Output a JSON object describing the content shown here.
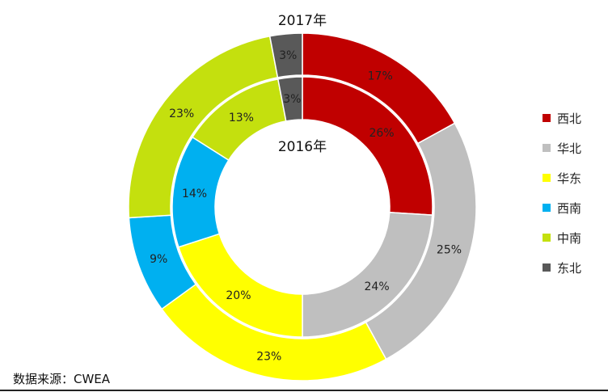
{
  "chart_data": {
    "type": "pie",
    "subtype": "double-donut",
    "categories": [
      "西北",
      "华北",
      "华东",
      "西南",
      "中南",
      "东北"
    ],
    "colors": [
      "#C00000",
      "#BFBFBF",
      "#FFFF00",
      "#00B0F0",
      "#C4E00E",
      "#595959"
    ],
    "series": [
      {
        "name": "2017年",
        "ring": "outer",
        "values": [
          17,
          25,
          23,
          9,
          23,
          3
        ],
        "labels": [
          "17%",
          "25%",
          "23%",
          "9%",
          "23%",
          "3%"
        ]
      },
      {
        "name": "2016年",
        "ring": "inner",
        "values": [
          26,
          24,
          20,
          14,
          13,
          3
        ],
        "labels": [
          "26%",
          "24%",
          "20%",
          "14%",
          "13%",
          "3%"
        ]
      }
    ],
    "legend_position": "right"
  },
  "source": "数据来源：CWEA"
}
